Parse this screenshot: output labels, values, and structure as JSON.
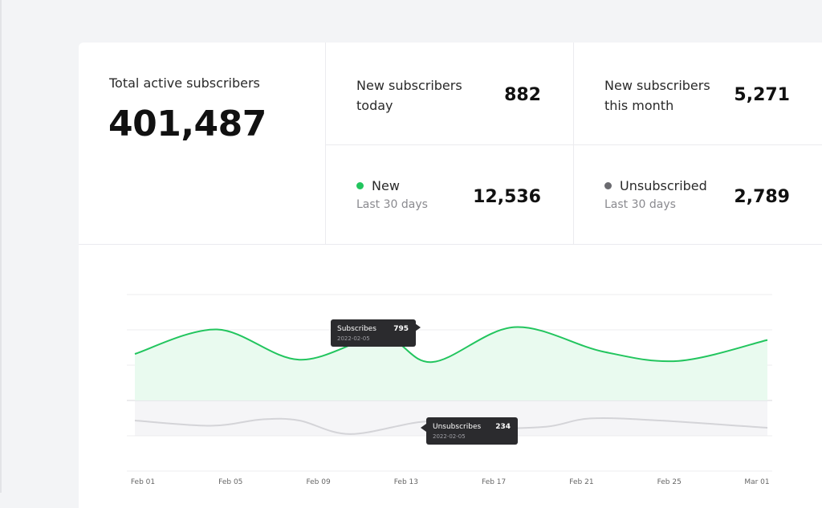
{
  "stats": {
    "total": {
      "label": "Total active subscribers",
      "value": "401,487"
    },
    "today": {
      "label": "New subscribers today",
      "value": "882"
    },
    "month": {
      "label": "New subscribers this month",
      "value": "5,271"
    },
    "new": {
      "label": "New",
      "sublabel": "Last 30 days",
      "value": "12,536",
      "color": "#22c55e"
    },
    "unsub": {
      "label": "Unsubscribed",
      "sublabel": "Last 30 days",
      "value": "2,789",
      "color": "#6b6b70"
    }
  },
  "chart_data": {
    "type": "area",
    "x_labels": [
      "Feb 01",
      "Feb 05",
      "Feb 09",
      "Feb 13",
      "Feb 17",
      "Feb 21",
      "Feb 25",
      "Mar 01"
    ],
    "series": [
      {
        "name": "Subscribes",
        "color": "#22c55e",
        "points": [
          [
            0,
            0.4
          ],
          [
            0.13,
            0.61
          ],
          [
            0.26,
            0.35
          ],
          [
            0.39,
            0.55
          ],
          [
            0.47,
            0.33
          ],
          [
            0.6,
            0.63
          ],
          [
            0.74,
            0.42
          ],
          [
            0.86,
            0.34
          ],
          [
            1.0,
            0.52
          ]
        ]
      },
      {
        "name": "Unsubscribes",
        "color": "#d4d4d8",
        "points": [
          [
            0,
            0.1
          ],
          [
            0.12,
            0.05
          ],
          [
            0.2,
            0.11
          ],
          [
            0.26,
            0.1
          ],
          [
            0.34,
            -0.03
          ],
          [
            0.46,
            0.09
          ],
          [
            0.55,
            0.03
          ],
          [
            0.65,
            0.04
          ],
          [
            0.72,
            0.12
          ],
          [
            0.83,
            0.1
          ],
          [
            1.0,
            0.03
          ]
        ]
      }
    ],
    "tooltips": [
      {
        "series": "Subscribes",
        "value": "795",
        "date": "2022-02-05"
      },
      {
        "series": "Unsubscribes",
        "value": "234",
        "date": "2022-02-05"
      }
    ],
    "grid": true
  }
}
